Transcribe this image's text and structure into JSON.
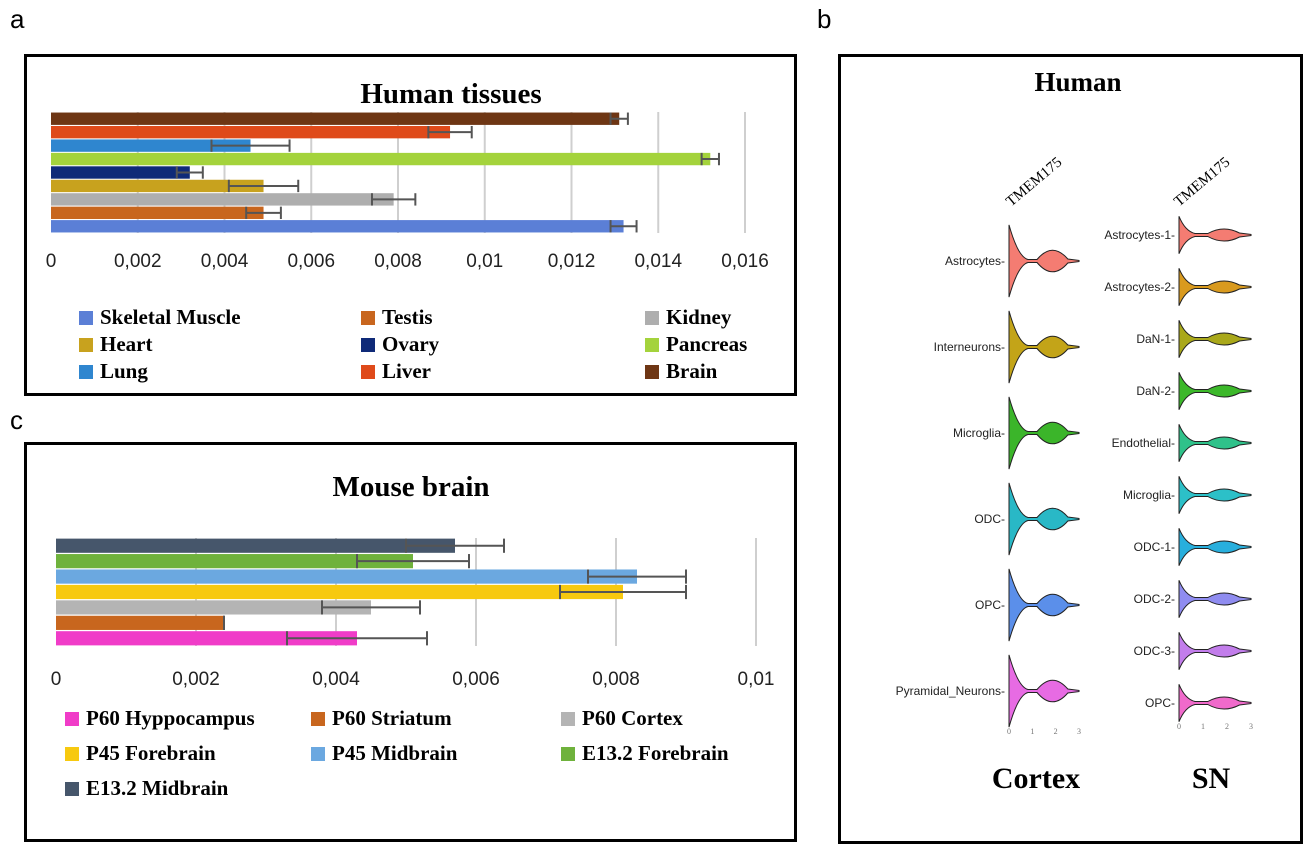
{
  "figure": {
    "panel_a_letter": "a",
    "panel_b_letter": "b",
    "panel_c_letter": "c"
  },
  "chart_data": [
    {
      "type": "bar",
      "orientation": "horizontal",
      "title": "Human tissues",
      "categories": [
        "Skeletal Muscle",
        "Testis",
        "Kidney",
        "Heart",
        "Ovary",
        "Pancreas",
        "Lung",
        "Liver",
        "Brain"
      ],
      "values": [
        0.0132,
        0.0049,
        0.0079,
        0.0049,
        0.0032,
        0.0152,
        0.0046,
        0.0092,
        0.0131
      ],
      "errors": [
        0.0003,
        0.0004,
        0.0005,
        0.0008,
        0.0003,
        0.0002,
        0.0009,
        0.0005,
        0.0002
      ],
      "colors": [
        "#5B7FD6",
        "#C8661E",
        "#AEAEAE",
        "#C8A21E",
        "#0F2A78",
        "#A4D33C",
        "#2F86CF",
        "#DF4A1A",
        "#6E3614"
      ],
      "xlim": [
        0,
        0.016
      ],
      "xticks": [
        "0",
        "0,002",
        "0,004",
        "0,006",
        "0,008",
        "0,01",
        "0,012",
        "0,014",
        "0,016"
      ],
      "grid": true,
      "legend_position": "bottom"
    },
    {
      "type": "bar",
      "orientation": "horizontal",
      "title": "Mouse brain",
      "categories": [
        "P60 Hyppocampus",
        "P60 Striatum",
        "P60 Cortex",
        "P45 Forebrain",
        "P45 Midbrain",
        "E13.2 Forebrain",
        "E13.2 Midbrain"
      ],
      "values": [
        0.0043,
        0.0024,
        0.0045,
        0.0081,
        0.0083,
        0.0051,
        0.0057
      ],
      "errors": [
        0.001,
        0.0,
        0.0007,
        0.0009,
        0.0007,
        0.0008,
        0.0007
      ],
      "colors": [
        "#F03CC8",
        "#C8661E",
        "#B4B4B4",
        "#F7C90F",
        "#6BA8E0",
        "#6FB23C",
        "#46566B"
      ],
      "xlim": [
        0,
        0.01
      ],
      "xticks": [
        "0",
        "0,002",
        "0,004",
        "0,006",
        "0,008",
        "0,01"
      ],
      "grid": true,
      "legend_position": "bottom"
    }
  ],
  "violin": {
    "title": "Human",
    "gene": "TMEM175",
    "cortex": {
      "label": "Cortex",
      "cell_types": [
        "Astrocytes-",
        "Interneurons-",
        "Microglia-",
        "ODC-",
        "OPC-",
        "Pyramidal_Neurons-"
      ],
      "colors": [
        "#F47C72",
        "#C3A418",
        "#3BB52A",
        "#29B8C6",
        "#5B8FEA",
        "#E76BE3"
      ],
      "xticks": [
        "0",
        "1",
        "2",
        "3"
      ]
    },
    "sn": {
      "label": "SN",
      "cell_types": [
        "Astrocytes-1-",
        "Astrocytes-2-",
        "DaN-1-",
        "DaN-2-",
        "Endothelial-",
        "Microglia-",
        "ODC-1-",
        "ODC-2-",
        "ODC-3-",
        "OPC-"
      ],
      "colors": [
        "#F47C72",
        "#D99A1E",
        "#A9A81A",
        "#3CB82A",
        "#2FC28A",
        "#2CC0C8",
        "#28AFDD",
        "#8F8CF0",
        "#C27DEB",
        "#F06ACB"
      ],
      "xticks": [
        "0",
        "1",
        "2",
        "3"
      ]
    }
  }
}
